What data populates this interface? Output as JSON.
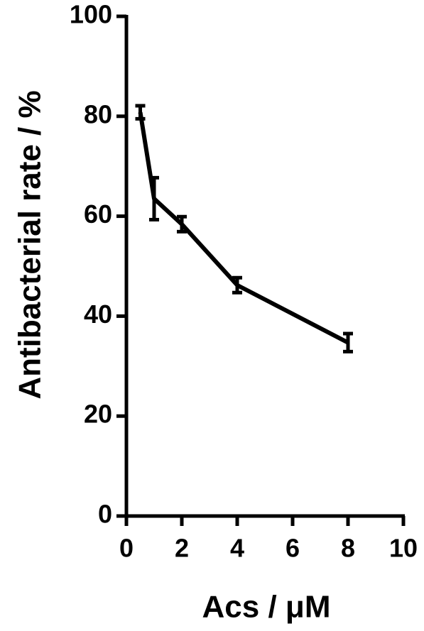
{
  "chart_data": {
    "type": "line",
    "xlabel": "Acs / μM",
    "ylabel": "Antibacterial rate  / %",
    "x": [
      0.5,
      1,
      2,
      4,
      8
    ],
    "series": [
      {
        "color": "#000000",
        "values": [
          80.8,
          63.5,
          58.4,
          46.2,
          34.7
        ],
        "errors": [
          1.3,
          4.2,
          1.5,
          1.5,
          1.8
        ]
      }
    ],
    "xlim": [
      0,
      10
    ],
    "xticks": [
      0,
      2,
      4,
      6,
      8,
      10
    ],
    "ylim": [
      0,
      100
    ],
    "yticks": [
      0,
      20,
      40,
      60,
      80,
      100
    ]
  }
}
